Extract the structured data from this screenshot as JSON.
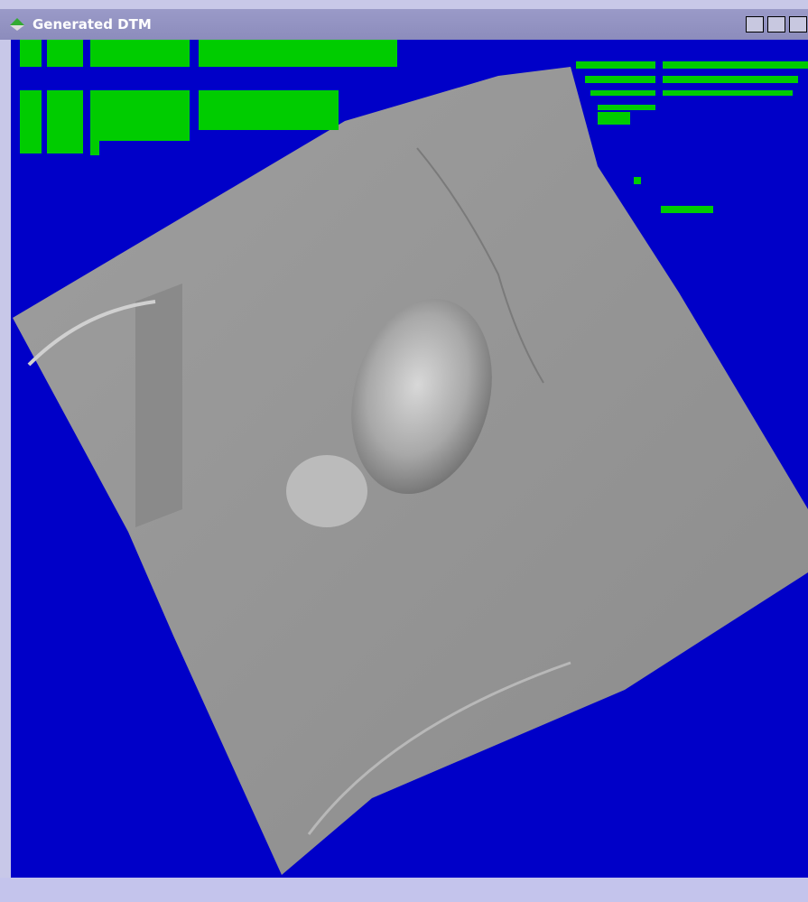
{
  "window": {
    "title": "Generated DTM"
  }
}
